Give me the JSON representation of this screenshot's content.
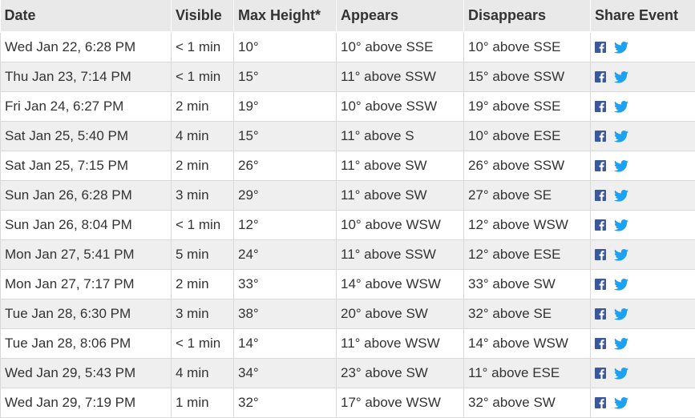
{
  "colors": {
    "header_bg": "#e9e9e9",
    "row_alt_bg": "#efefef",
    "border": "#d9d9d9",
    "facebook": "#3b5998",
    "twitter": "#1da1f2"
  },
  "table": {
    "headers": {
      "date": "Date",
      "visible": "Visible",
      "max_height": "Max Height*",
      "appears": "Appears",
      "disappears": "Disappears",
      "share": "Share Event"
    },
    "share_icons": [
      "facebook-icon",
      "twitter-icon"
    ],
    "rows": [
      {
        "date": "Wed Jan 22, 6:28 PM",
        "visible": "< 1 min",
        "max_height": "10°",
        "appears": "10° above SSE",
        "disappears": "10° above SSE"
      },
      {
        "date": "Thu Jan 23, 7:14 PM",
        "visible": "< 1 min",
        "max_height": "15°",
        "appears": "11° above SSW",
        "disappears": "15° above SSW"
      },
      {
        "date": "Fri Jan 24, 6:27 PM",
        "visible": "2 min",
        "max_height": "19°",
        "appears": "10° above SSW",
        "disappears": "19° above SSE"
      },
      {
        "date": "Sat Jan 25, 5:40 PM",
        "visible": "4 min",
        "max_height": "15°",
        "appears": "11° above S",
        "disappears": "10° above ESE"
      },
      {
        "date": "Sat Jan 25, 7:15 PM",
        "visible": "2 min",
        "max_height": "26°",
        "appears": "11° above SW",
        "disappears": "26° above SSW"
      },
      {
        "date": "Sun Jan 26, 6:28 PM",
        "visible": "3 min",
        "max_height": "29°",
        "appears": "11° above SW",
        "disappears": "27° above SE"
      },
      {
        "date": "Sun Jan 26, 8:04 PM",
        "visible": "< 1 min",
        "max_height": "12°",
        "appears": "10° above WSW",
        "disappears": "12° above WSW"
      },
      {
        "date": "Mon Jan 27, 5:41 PM",
        "visible": "5 min",
        "max_height": "24°",
        "appears": "11° above SSW",
        "disappears": "12° above ESE"
      },
      {
        "date": "Mon Jan 27, 7:17 PM",
        "visible": "2 min",
        "max_height": "33°",
        "appears": "14° above WSW",
        "disappears": "33° above SW"
      },
      {
        "date": "Tue Jan 28, 6:30 PM",
        "visible": "3 min",
        "max_height": "38°",
        "appears": "20° above SW",
        "disappears": "32° above SE"
      },
      {
        "date": "Tue Jan 28, 8:06 PM",
        "visible": "< 1 min",
        "max_height": "14°",
        "appears": "11° above WSW",
        "disappears": "14° above WSW"
      },
      {
        "date": "Wed Jan 29, 5:43 PM",
        "visible": "4 min",
        "max_height": "34°",
        "appears": "23° above SW",
        "disappears": "11° above ESE"
      },
      {
        "date": "Wed Jan 29, 7:19 PM",
        "visible": "1 min",
        "max_height": "32°",
        "appears": "17° above WSW",
        "disappears": "32° above SW"
      }
    ]
  }
}
